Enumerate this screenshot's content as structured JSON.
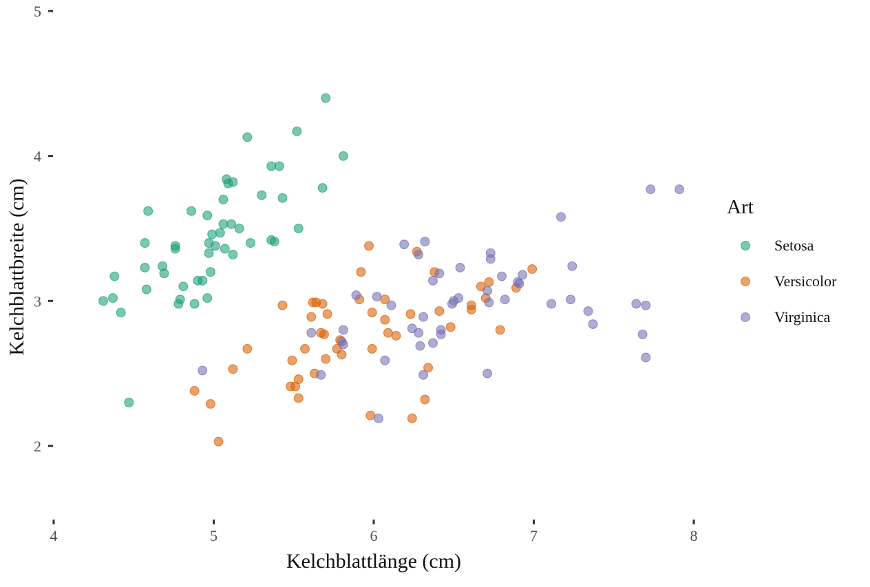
{
  "chart_data": {
    "type": "scatter",
    "title": "",
    "xlabel": "Kelchblattlänge (cm)",
    "ylabel": "Kelchblattbreite (cm)",
    "xlim": [
      4.0,
      8.6
    ],
    "ylim": [
      1.55,
      5.05
    ],
    "xticks": [
      4,
      5,
      6,
      7,
      8
    ],
    "yticks": [
      2,
      3,
      4,
      5
    ],
    "grid": false,
    "legend": {
      "title": "Art",
      "placement": "right"
    },
    "series": [
      {
        "name": "Setosa",
        "color": "#1b9e77",
        "points": [
          [
            4.31,
            3.0
          ],
          [
            4.37,
            3.02
          ],
          [
            4.38,
            3.17
          ],
          [
            4.42,
            2.92
          ],
          [
            4.47,
            2.3
          ],
          [
            4.57,
            3.4
          ],
          [
            4.57,
            3.23
          ],
          [
            4.58,
            3.08
          ],
          [
            4.59,
            3.62
          ],
          [
            4.68,
            3.24
          ],
          [
            4.69,
            3.19
          ],
          [
            4.76,
            3.38
          ],
          [
            4.76,
            3.36
          ],
          [
            4.78,
            2.98
          ],
          [
            4.79,
            3.01
          ],
          [
            4.81,
            3.1
          ],
          [
            4.86,
            3.62
          ],
          [
            4.88,
            2.98
          ],
          [
            4.9,
            3.14
          ],
          [
            4.93,
            3.14
          ],
          [
            4.96,
            3.59
          ],
          [
            4.96,
            3.02
          ],
          [
            4.97,
            3.4
          ],
          [
            4.97,
            3.33
          ],
          [
            4.98,
            3.2
          ],
          [
            4.99,
            3.46
          ],
          [
            5.01,
            3.38
          ],
          [
            5.04,
            3.47
          ],
          [
            5.06,
            3.7
          ],
          [
            5.06,
            3.53
          ],
          [
            5.07,
            3.36
          ],
          [
            5.08,
            3.84
          ],
          [
            5.09,
            3.81
          ],
          [
            5.11,
            3.53
          ],
          [
            5.12,
            3.82
          ],
          [
            5.12,
            3.32
          ],
          [
            5.16,
            3.5
          ],
          [
            5.21,
            4.13
          ],
          [
            5.23,
            3.4
          ],
          [
            5.3,
            3.73
          ],
          [
            5.36,
            3.93
          ],
          [
            5.36,
            3.42
          ],
          [
            5.38,
            3.41
          ],
          [
            5.41,
            3.93
          ],
          [
            5.43,
            3.71
          ],
          [
            5.52,
            4.17
          ],
          [
            5.53,
            3.5
          ],
          [
            5.68,
            3.78
          ],
          [
            5.7,
            4.4
          ],
          [
            5.81,
            4.0
          ]
        ]
      },
      {
        "name": "Versicolor",
        "color": "#d95f02",
        "points": [
          [
            4.88,
            2.38
          ],
          [
            4.98,
            2.29
          ],
          [
            5.03,
            2.03
          ],
          [
            5.12,
            2.53
          ],
          [
            5.21,
            2.67
          ],
          [
            5.43,
            2.97
          ],
          [
            5.48,
            2.41
          ],
          [
            5.49,
            2.59
          ],
          [
            5.51,
            2.41
          ],
          [
            5.53,
            2.46
          ],
          [
            5.53,
            2.33
          ],
          [
            5.57,
            2.67
          ],
          [
            5.61,
            2.89
          ],
          [
            5.62,
            2.99
          ],
          [
            5.63,
            2.5
          ],
          [
            5.64,
            2.99
          ],
          [
            5.67,
            2.78
          ],
          [
            5.68,
            2.98
          ],
          [
            5.69,
            2.77
          ],
          [
            5.7,
            2.6
          ],
          [
            5.71,
            2.91
          ],
          [
            5.77,
            2.67
          ],
          [
            5.79,
            2.73
          ],
          [
            5.8,
            2.63
          ],
          [
            5.91,
            3.01
          ],
          [
            5.92,
            3.2
          ],
          [
            5.97,
            3.38
          ],
          [
            5.98,
            2.21
          ],
          [
            5.99,
            2.92
          ],
          [
            5.99,
            2.67
          ],
          [
            6.07,
            3.01
          ],
          [
            6.07,
            2.87
          ],
          [
            6.09,
            2.78
          ],
          [
            6.14,
            2.76
          ],
          [
            6.23,
            2.91
          ],
          [
            6.24,
            2.19
          ],
          [
            6.27,
            3.34
          ],
          [
            6.32,
            2.32
          ],
          [
            6.34,
            2.54
          ],
          [
            6.38,
            3.2
          ],
          [
            6.41,
            2.93
          ],
          [
            6.48,
            2.82
          ],
          [
            6.61,
            2.97
          ],
          [
            6.61,
            2.94
          ],
          [
            6.67,
            3.1
          ],
          [
            6.7,
            3.02
          ],
          [
            6.72,
            3.13
          ],
          [
            6.79,
            2.8
          ],
          [
            6.89,
            3.09
          ],
          [
            6.99,
            3.22
          ]
        ]
      },
      {
        "name": "Virginica",
        "color": "#7570b3",
        "points": [
          [
            4.93,
            2.52
          ],
          [
            5.61,
            2.78
          ],
          [
            5.67,
            2.49
          ],
          [
            5.8,
            2.72
          ],
          [
            5.81,
            2.8
          ],
          [
            5.81,
            2.7
          ],
          [
            5.89,
            3.04
          ],
          [
            6.02,
            3.03
          ],
          [
            6.03,
            2.19
          ],
          [
            6.07,
            2.59
          ],
          [
            6.11,
            2.97
          ],
          [
            6.19,
            3.39
          ],
          [
            6.24,
            2.81
          ],
          [
            6.28,
            3.32
          ],
          [
            6.28,
            2.78
          ],
          [
            6.29,
            2.69
          ],
          [
            6.31,
            2.89
          ],
          [
            6.31,
            2.49
          ],
          [
            6.32,
            3.41
          ],
          [
            6.37,
            3.14
          ],
          [
            6.37,
            2.71
          ],
          [
            6.41,
            3.19
          ],
          [
            6.42,
            2.77
          ],
          [
            6.42,
            2.8
          ],
          [
            6.49,
            2.98
          ],
          [
            6.5,
            3.0
          ],
          [
            6.53,
            3.02
          ],
          [
            6.54,
            3.23
          ],
          [
            6.71,
            2.5
          ],
          [
            6.71,
            3.07
          ],
          [
            6.72,
            2.99
          ],
          [
            6.73,
            3.29
          ],
          [
            6.73,
            3.33
          ],
          [
            6.8,
            3.17
          ],
          [
            6.82,
            3.01
          ],
          [
            6.9,
            3.13
          ],
          [
            6.91,
            3.12
          ],
          [
            6.93,
            3.18
          ],
          [
            7.11,
            2.98
          ],
          [
            7.17,
            3.58
          ],
          [
            7.23,
            3.01
          ],
          [
            7.24,
            3.24
          ],
          [
            7.34,
            2.93
          ],
          [
            7.37,
            2.84
          ],
          [
            7.64,
            2.98
          ],
          [
            7.68,
            2.77
          ],
          [
            7.7,
            2.97
          ],
          [
            7.7,
            2.61
          ],
          [
            7.73,
            3.77
          ],
          [
            7.91,
            3.77
          ]
        ]
      }
    ]
  }
}
